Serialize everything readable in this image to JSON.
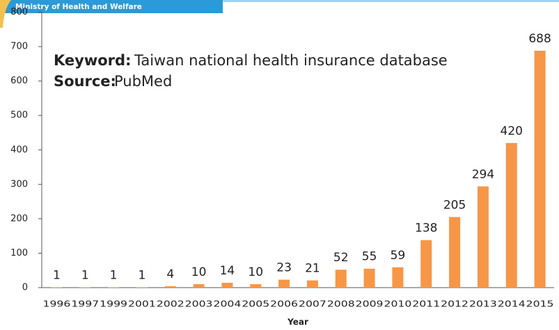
{
  "header": {
    "title": "Ministry  of Health and Welfare"
  },
  "chart_data": {
    "type": "bar",
    "annotations": {
      "keyword_label": "Keyword:",
      "keyword": "Taiwan national health insurance database",
      "source_label": "Source:",
      "source": "PubMed"
    },
    "x_label": "Year",
    "categories": [
      "1996",
      "1997",
      "1999",
      "2001",
      "2002",
      "2003",
      "2004",
      "2005",
      "2006",
      "2007",
      "2008",
      "2009",
      "2010",
      "2011",
      "2012",
      "2013",
      "2014",
      "2015"
    ],
    "values": [
      1,
      1,
      1,
      1,
      4,
      10,
      14,
      10,
      23,
      21,
      52,
      55,
      59,
      138,
      205,
      294,
      420,
      688
    ],
    "color": "#f79646",
    "ylim": [
      0,
      800
    ],
    "yticks": [
      0,
      100,
      200,
      300,
      400,
      500,
      600,
      700,
      800
    ],
    "grid": false
  }
}
